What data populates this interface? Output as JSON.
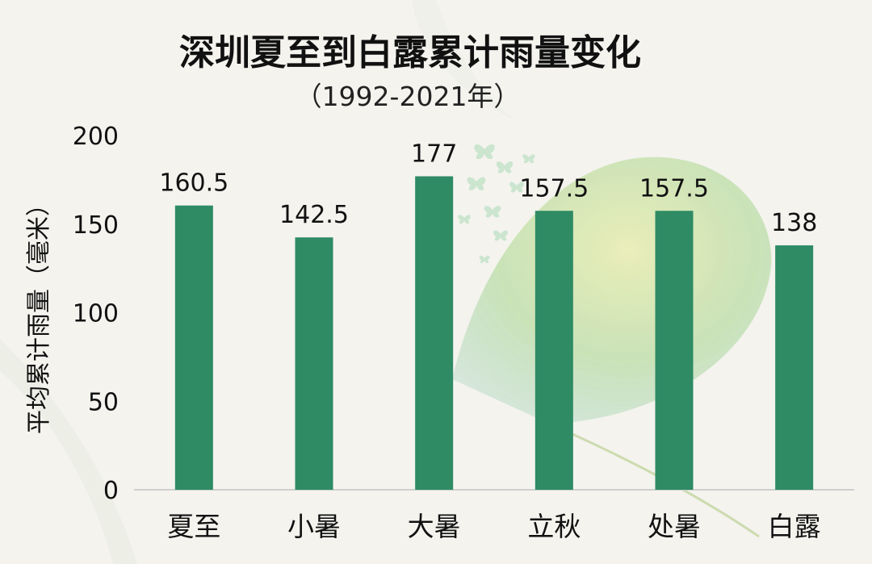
{
  "chart_data": {
    "type": "bar",
    "title": "深圳夏至到白露累计雨量变化",
    "subtitle": "（1992-2021年）",
    "xlabel": "",
    "ylabel": "平均累计雨量（毫米）",
    "categories": [
      "夏至",
      "小暑",
      "大暑",
      "立秋",
      "处暑",
      "白露"
    ],
    "values": [
      160.5,
      142.5,
      177,
      157.5,
      157.5,
      138
    ],
    "data_labels": [
      "160.5",
      "142.5",
      "177",
      "157.5",
      "157.5",
      "138"
    ],
    "ylim": [
      0,
      200
    ],
    "yticks": [
      "0",
      "50",
      "100",
      "150",
      "200"
    ],
    "grid": false,
    "legend": "none",
    "colors": {
      "bar": "#2e8b64",
      "text": "#111111",
      "axis": "#cfcfcf",
      "background": "#f4f3ee"
    }
  }
}
